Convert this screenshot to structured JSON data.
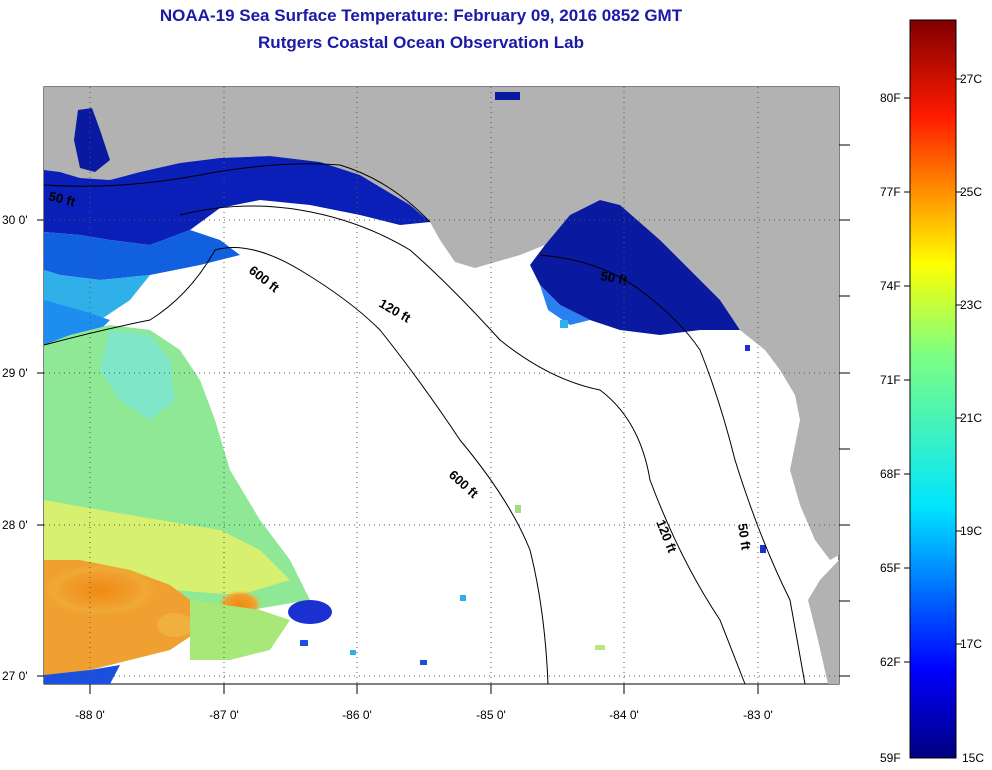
{
  "header": {
    "title": "NOAA-19 Sea Surface Temperature:  February 09, 2016 0852 GMT",
    "subtitle": "Rutgers Coastal Ocean Observation Lab"
  },
  "map": {
    "lat_labels": [
      "30 0'",
      "29 0'",
      "28 0'",
      "27 0'"
    ],
    "lon_labels": [
      "-88 0'",
      "-87 0'",
      "-86 0'",
      "-85 0'",
      "-84 0'",
      "-83 0'"
    ],
    "contour_labels": [
      "50 ft",
      "600 ft",
      "120 ft",
      "50 ft",
      "600 ft",
      "120 ft",
      "50 ft"
    ]
  },
  "colorbar": {
    "fahrenheit_labels": [
      "80F",
      "77F",
      "74F",
      "71F",
      "68F",
      "65F",
      "62F",
      "59F"
    ],
    "celsius_labels": [
      "27C",
      "25C",
      "23C",
      "21C",
      "19C",
      "17C",
      "15C"
    ]
  },
  "colors": {
    "title": "#1a1aa6",
    "land": "#b2b2b2",
    "cold_water": "#0a1aa0"
  }
}
